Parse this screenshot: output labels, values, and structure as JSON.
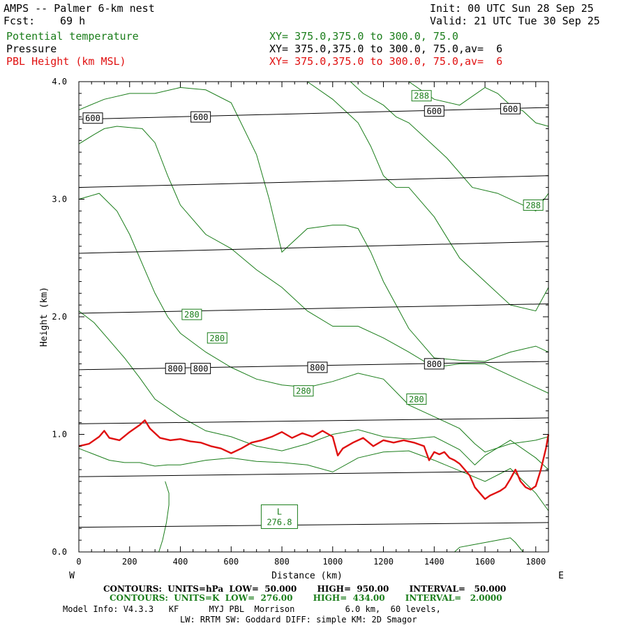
{
  "header": {
    "title": "AMPS -- Palmer 6-km nest",
    "fcst_label": "Fcst:",
    "fcst_value": "69 h",
    "init": "Init: 00 UTC Sun 28 Sep 25",
    "valid": "Valid: 21 UTC Tue 30 Sep 25"
  },
  "legend": [
    {
      "label": "Potential temperature",
      "xy": "XY= 375.0,375.0 to 300.0, 75.0",
      "color": "#1a7d1a"
    },
    {
      "label": "Pressure",
      "xy": "XY= 375.0,375.0 to 300.0, 75.0,av=  6",
      "color": "#000000"
    },
    {
      "label": "PBL Height (km MSL)",
      "xy": "XY= 375.0,375.0 to 300.0, 75.0,av=  6",
      "color": "#e01010"
    }
  ],
  "footer": {
    "contours_hpa": "CONTOURS:  UNITS=hPa  LOW=  50.000       HIGH=  950.00       INTERVAL=   50.000",
    "contours_k": "CONTOURS:  UNITS=K  LOW=  276.00       HIGH=  434.00       INTERVAL=   2.0000",
    "model_info": "Model Info: V4.3.3   KF      MYJ PBL  Morrison          6.0 km,  60 levels,",
    "physics": "LW: RRTM SW: Goddard DIFF: simple KM: 2D Smagor"
  },
  "chart_data": {
    "type": "line",
    "title": "AMPS -- Palmer 6-km nest",
    "xlabel": "Distance (km)",
    "ylabel": "Height (km)",
    "xlim": [
      0,
      1850
    ],
    "ylim": [
      0,
      4.0
    ],
    "xticks": [
      0,
      200,
      400,
      600,
      800,
      1000,
      1200,
      1400,
      1600,
      1800
    ],
    "yticks": [
      0.0,
      1.0,
      2.0,
      3.0,
      4.0
    ],
    "ytick_labels": [
      "0.0",
      "1.0",
      "2.0",
      "3.0",
      "4.0"
    ],
    "x_left_label": "W",
    "x_right_label": "E",
    "pressure_isobars": [
      {
        "y0": 3.68,
        "y1": 3.78
      },
      {
        "y0": 3.1,
        "y1": 3.2
      },
      {
        "y0": 2.54,
        "y1": 2.64
      },
      {
        "y0": 2.03,
        "y1": 2.11
      },
      {
        "y0": 1.55,
        "y1": 1.62
      },
      {
        "y0": 1.09,
        "y1": 1.14
      },
      {
        "y0": 0.64,
        "y1": 0.69
      },
      {
        "y0": 0.21,
        "y1": 0.25
      }
    ],
    "pressure_labels": [
      {
        "text": "600",
        "x": 55,
        "y": 3.69
      },
      {
        "text": "600",
        "x": 480,
        "y": 3.7
      },
      {
        "text": "600",
        "x": 1400,
        "y": 3.75
      },
      {
        "text": "600",
        "x": 1700,
        "y": 3.77
      },
      {
        "text": "800",
        "x": 380,
        "y": 1.56
      },
      {
        "text": "800",
        "x": 480,
        "y": 1.56
      },
      {
        "text": "800",
        "x": 940,
        "y": 1.57
      },
      {
        "text": "800",
        "x": 1400,
        "y": 1.6
      }
    ],
    "theta_series": [
      {
        "name": "theta-1",
        "x": [
          0,
          60,
          120,
          180,
          240,
          300,
          350,
          400,
          500,
          600,
          700,
          800,
          900,
          1000,
          1100,
          1200,
          1300,
          1400,
          1500,
          1600,
          1700,
          1800,
          1850
        ],
        "y": [
          0.88,
          0.83,
          0.78,
          0.76,
          0.76,
          0.73,
          0.74,
          0.74,
          0.78,
          0.8,
          0.77,
          0.76,
          0.74,
          0.68,
          0.8,
          0.85,
          0.86,
          0.78,
          0.69,
          0.6,
          0.71,
          0.5,
          0.35
        ]
      },
      {
        "name": "theta-280a",
        "x": [
          0,
          60,
          120,
          180,
          240,
          300,
          400,
          500,
          600,
          700,
          800,
          900,
          1000,
          1100,
          1200,
          1300,
          1400,
          1500,
          1560,
          1600,
          1700,
          1800,
          1850
        ],
        "y": [
          2.05,
          1.95,
          1.8,
          1.65,
          1.48,
          1.3,
          1.15,
          1.03,
          0.98,
          0.9,
          0.86,
          0.92,
          1.0,
          1.04,
          0.98,
          0.96,
          0.98,
          0.87,
          0.74,
          0.82,
          0.95,
          0.8,
          0.7
        ]
      },
      {
        "name": "theta-280b",
        "x": [
          0,
          80,
          150,
          200,
          250,
          300,
          350,
          400,
          500,
          600,
          700,
          800,
          900,
          1000,
          1100,
          1200,
          1300,
          1400,
          1500,
          1560,
          1600,
          1700,
          1800,
          1850
        ],
        "y": [
          3.0,
          3.05,
          2.9,
          2.7,
          2.45,
          2.2,
          2.0,
          1.86,
          1.7,
          1.57,
          1.47,
          1.42,
          1.4,
          1.45,
          1.52,
          1.47,
          1.25,
          1.15,
          1.05,
          0.92,
          0.85,
          0.92,
          0.95,
          0.98
        ]
      },
      {
        "name": "theta-282",
        "x": [
          0,
          60,
          100,
          150,
          200,
          250,
          300,
          350,
          400,
          500,
          600,
          700,
          800,
          900,
          1000,
          1100,
          1200,
          1300,
          1400,
          1500,
          1600,
          1700,
          1800,
          1850
        ],
        "y": [
          3.47,
          3.55,
          3.6,
          3.62,
          3.61,
          3.6,
          3.48,
          3.2,
          2.95,
          2.7,
          2.58,
          2.4,
          2.25,
          2.05,
          1.92,
          1.92,
          1.82,
          1.7,
          1.57,
          1.6,
          1.6,
          1.5,
          1.4,
          1.35
        ]
      },
      {
        "name": "theta-284",
        "x": [
          0,
          100,
          200,
          300,
          400,
          500,
          600,
          700,
          750,
          800,
          900,
          1000,
          1050,
          1100,
          1150,
          1200,
          1250,
          1300,
          1400,
          1500,
          1600,
          1700,
          1800,
          1850
        ],
        "y": [
          3.76,
          3.85,
          3.9,
          3.9,
          3.95,
          3.93,
          3.82,
          3.38,
          3.0,
          2.55,
          2.75,
          2.78,
          2.78,
          2.75,
          2.55,
          2.3,
          2.1,
          1.9,
          1.65,
          1.63,
          1.62,
          1.7,
          1.75,
          1.7
        ]
      },
      {
        "name": "theta-286",
        "x": [
          900,
          1000,
          1100,
          1150,
          1200,
          1250,
          1300,
          1400,
          1500,
          1600,
          1700,
          1800,
          1850
        ],
        "y": [
          4.0,
          3.85,
          3.65,
          3.45,
          3.2,
          3.1,
          3.1,
          2.85,
          2.5,
          2.3,
          2.1,
          2.05,
          2.25
        ]
      },
      {
        "name": "theta-288",
        "x": [
          1070,
          1120,
          1200,
          1250,
          1300,
          1350,
          1450,
          1550,
          1650,
          1750,
          1800,
          1850
        ],
        "y": [
          4.0,
          3.9,
          3.8,
          3.7,
          3.65,
          3.55,
          3.35,
          3.1,
          3.05,
          2.95,
          2.9,
          3.05
        ]
      },
      {
        "name": "theta-288-top",
        "x": [
          1300,
          1400,
          1500,
          1600,
          1650,
          1700,
          1750,
          1800,
          1850
        ],
        "y": [
          4.0,
          3.85,
          3.8,
          3.95,
          3.9,
          3.8,
          3.75,
          3.65,
          3.62
        ]
      },
      {
        "name": "theta-sfc-left",
        "x": [
          340,
          355,
          355,
          345,
          330,
          315
        ],
        "y": [
          0.6,
          0.5,
          0.4,
          0.25,
          0.1,
          0.0
        ]
      },
      {
        "name": "theta-sfc-right",
        "x": [
          1480,
          1500,
          1550,
          1600,
          1650,
          1700,
          1720,
          1750
        ],
        "y": [
          0.0,
          0.04,
          0.06,
          0.08,
          0.1,
          0.12,
          0.08,
          0.0
        ]
      }
    ],
    "theta_labels": [
      {
        "text": "280",
        "x": 445,
        "y": 2.02
      },
      {
        "text": "280",
        "x": 545,
        "y": 1.82
      },
      {
        "text": "280",
        "x": 885,
        "y": 1.37
      },
      {
        "text": "280",
        "x": 1330,
        "y": 1.3
      },
      {
        "text": "288",
        "x": 1350,
        "y": 3.88
      },
      {
        "text": "288",
        "x": 1790,
        "y": 2.95
      }
    ],
    "low_marker": {
      "symbol": "L",
      "value": "276.8",
      "x": 790,
      "y": 0.3
    },
    "pbl_height": {
      "name": "PBL Height (km MSL)",
      "x": [
        0,
        40,
        80,
        100,
        120,
        160,
        200,
        240,
        260,
        280,
        320,
        360,
        400,
        440,
        480,
        520,
        560,
        600,
        640,
        680,
        720,
        760,
        800,
        840,
        880,
        920,
        960,
        1000,
        1020,
        1040,
        1080,
        1120,
        1160,
        1200,
        1240,
        1280,
        1320,
        1360,
        1380,
        1400,
        1420,
        1440,
        1460,
        1480,
        1500,
        1520,
        1540,
        1560,
        1580,
        1600,
        1620,
        1640,
        1660,
        1680,
        1700,
        1720,
        1740,
        1760,
        1780,
        1800,
        1820,
        1840,
        1850
      ],
      "y": [
        0.9,
        0.92,
        0.98,
        1.03,
        0.97,
        0.95,
        1.02,
        1.08,
        1.12,
        1.05,
        0.97,
        0.95,
        0.96,
        0.94,
        0.93,
        0.9,
        0.88,
        0.84,
        0.88,
        0.93,
        0.95,
        0.98,
        1.02,
        0.97,
        1.01,
        0.98,
        1.03,
        0.98,
        0.82,
        0.88,
        0.93,
        0.97,
        0.9,
        0.95,
        0.93,
        0.95,
        0.93,
        0.9,
        0.78,
        0.85,
        0.83,
        0.85,
        0.8,
        0.78,
        0.75,
        0.7,
        0.65,
        0.55,
        0.5,
        0.45,
        0.48,
        0.5,
        0.52,
        0.55,
        0.62,
        0.7,
        0.6,
        0.55,
        0.53,
        0.56,
        0.7,
        0.88,
        1.0
      ]
    },
    "colors": {
      "pressure": "#000000",
      "theta": "#1a7d1a",
      "pbl": "#e01010"
    }
  }
}
